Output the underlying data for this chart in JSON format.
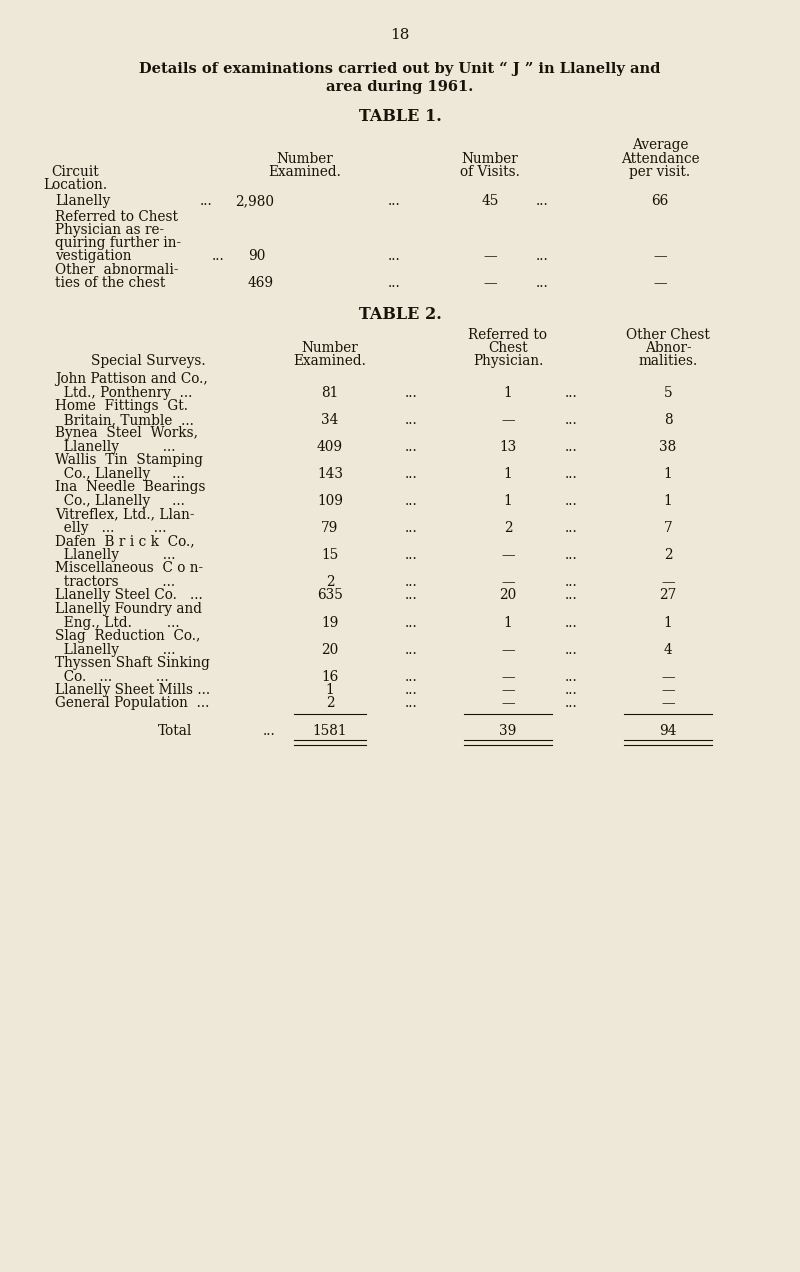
{
  "page_number": "18",
  "title_line1": "Details of examinations carried out by Unit “ J ” in Llanelly and",
  "title_line2": "area during 1961.",
  "table1_title": "TABLE 1.",
  "table2_title": "TABLE 2.",
  "table2_total_label": "Total",
  "table2_total_dots": "...",
  "table2_total_examined": "1581",
  "table2_total_physician": "39",
  "table2_total_abnor": "94",
  "bg_color": "#eee8d8",
  "text_color": "#1a1209",
  "font_size_page": 11,
  "font_size_title": 10.5,
  "font_size_table_title": 11.5,
  "font_size_header": 9.8,
  "font_size_body": 9.8
}
